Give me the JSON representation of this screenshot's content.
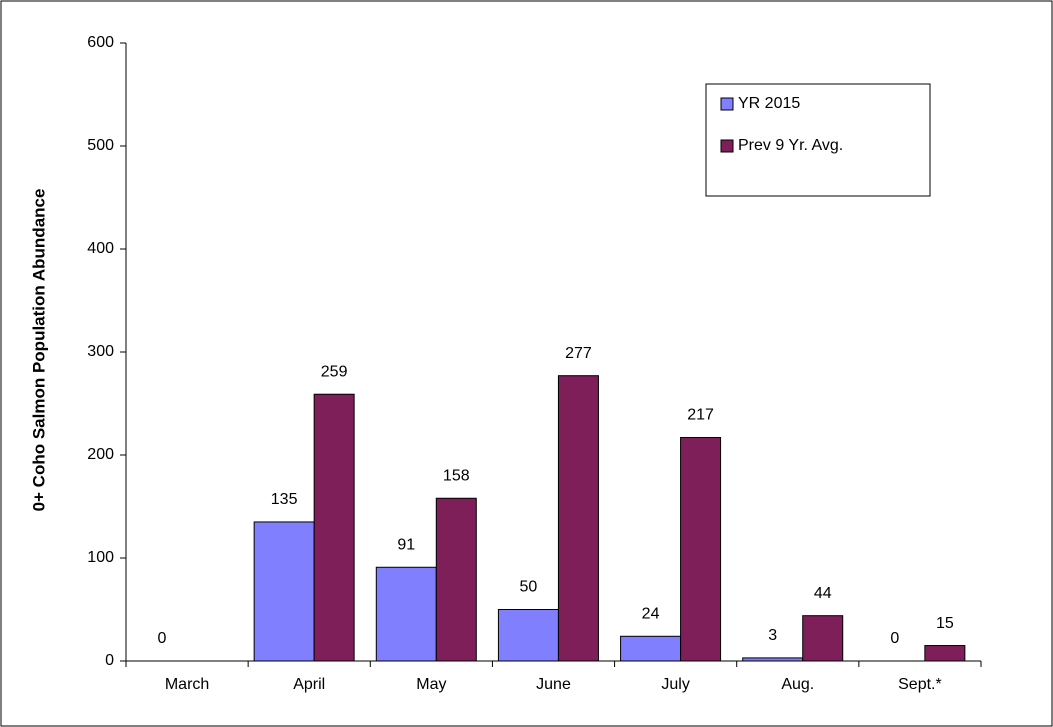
{
  "chart_data": {
    "type": "bar",
    "y_label": "0+ Coho Salmon Population Abundance",
    "categories": [
      "March",
      "April",
      "May",
      "June",
      "July",
      "Aug.",
      "Sept.*"
    ],
    "series": [
      {
        "name": "YR 2015",
        "color": "#8080ff",
        "values": [
          0,
          135,
          91,
          50,
          24,
          3,
          0
        ]
      },
      {
        "name": "Prev 9 Yr. Avg.",
        "color": "#7f1f5a",
        "values": [
          null,
          259,
          158,
          277,
          217,
          44,
          15
        ]
      }
    ],
    "ylim": [
      0,
      600
    ],
    "yticks": [
      0,
      100,
      200,
      300,
      400,
      500,
      600
    ],
    "grid": false,
    "legend": "top-right"
  }
}
